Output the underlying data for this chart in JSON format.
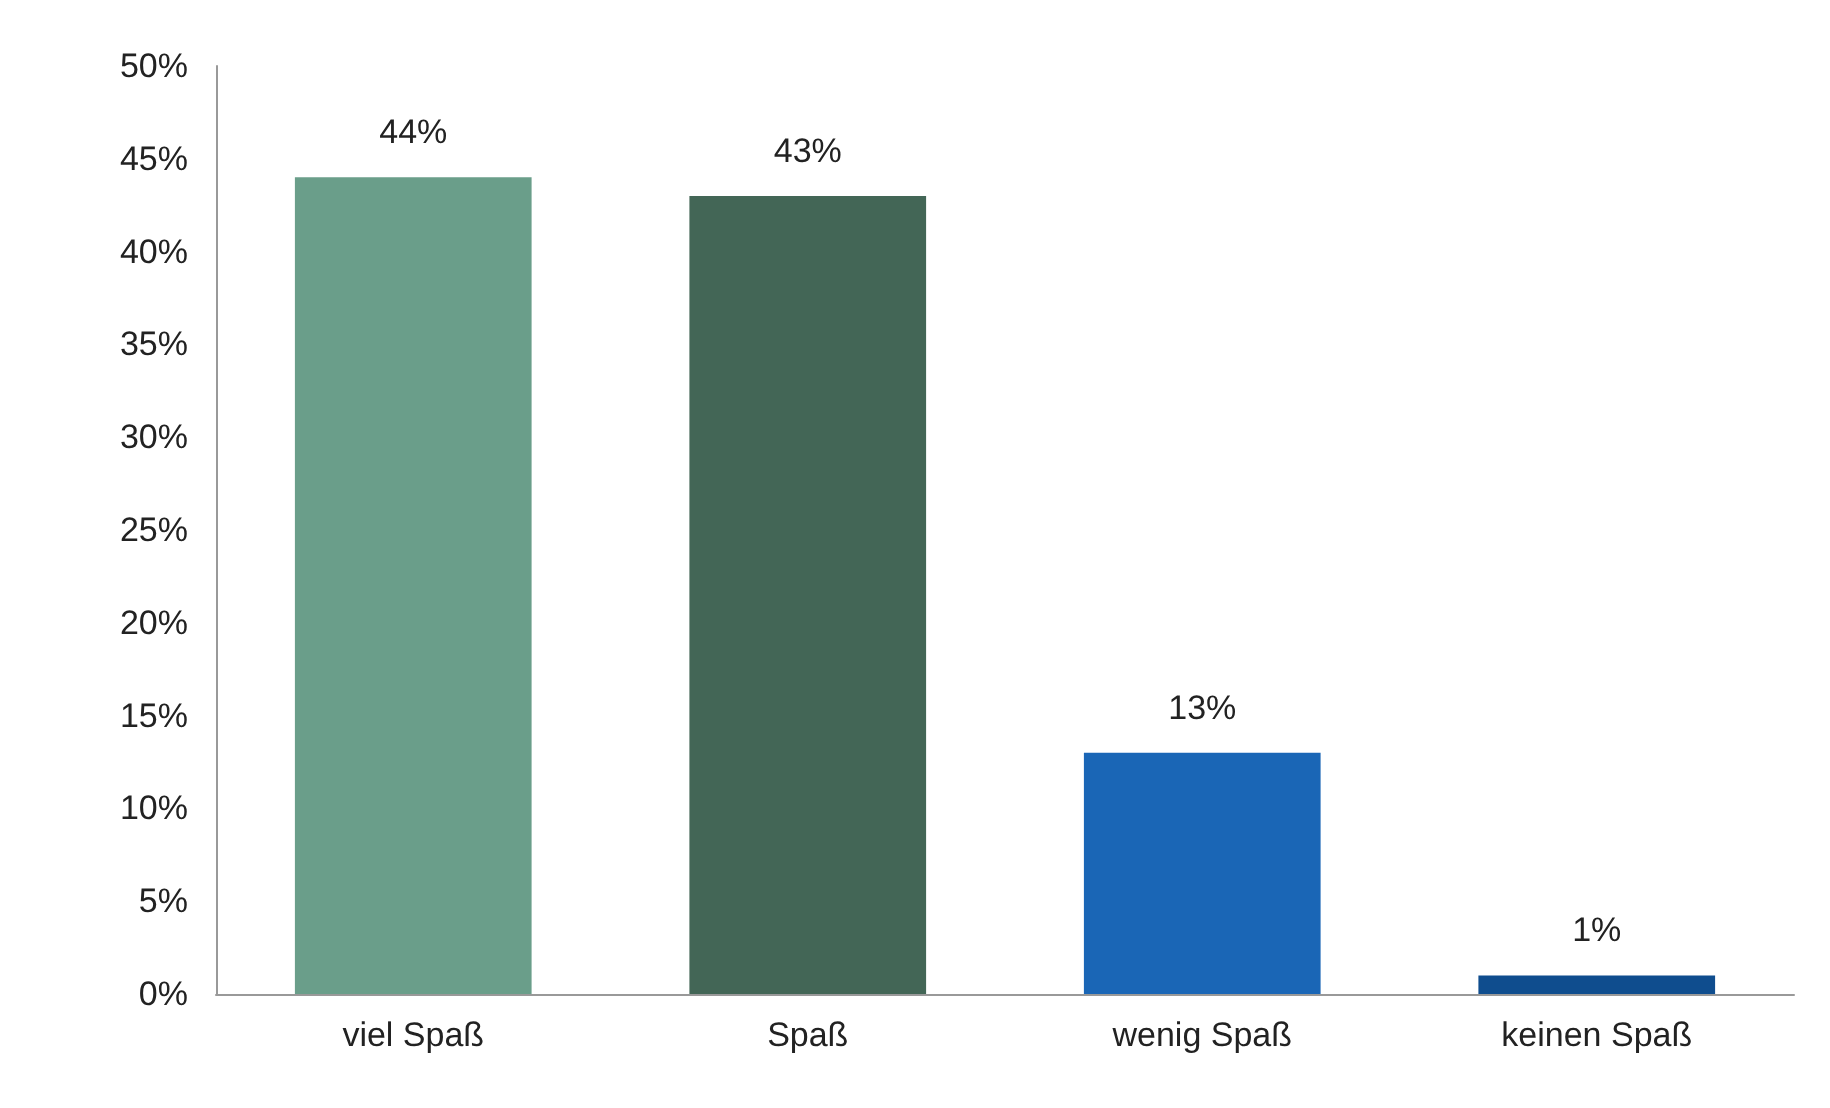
{
  "chart_data": {
    "type": "bar",
    "categories": [
      "viel Spaß",
      "Spaß",
      "wenig Spaß",
      "keinen Spaß"
    ],
    "values": [
      44,
      43,
      13,
      1
    ],
    "colors": [
      "#6a9e8a",
      "#436656",
      "#1a66b6",
      "#0f4d8e"
    ],
    "value_labels": [
      "44%",
      "43%",
      "13%",
      "1%"
    ],
    "ylim": [
      0,
      50
    ],
    "yticks": [
      {
        "value": 0,
        "label": "0%"
      },
      {
        "value": 5,
        "label": "5%"
      },
      {
        "value": 10,
        "label": "10%"
      },
      {
        "value": 15,
        "label": "15%"
      },
      {
        "value": 20,
        "label": "20%"
      },
      {
        "value": 25,
        "label": "25%"
      },
      {
        "value": 30,
        "label": "30%"
      },
      {
        "value": 35,
        "label": "35%"
      },
      {
        "value": 40,
        "label": "40%"
      },
      {
        "value": 45,
        "label": "45%"
      },
      {
        "value": 50,
        "label": "50%"
      }
    ],
    "grid": false
  }
}
